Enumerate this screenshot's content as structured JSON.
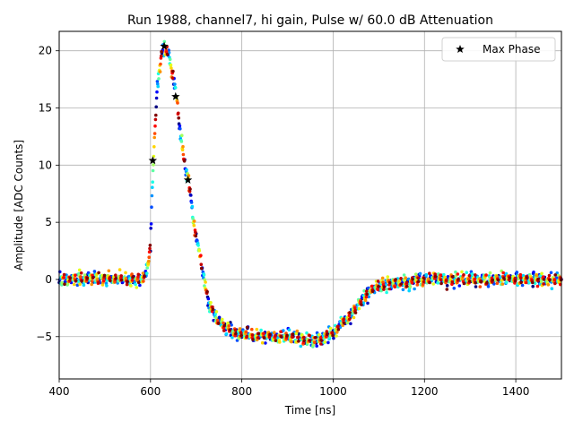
{
  "chart_data": {
    "type": "scatter",
    "title": "Run 1988, channel7, hi gain, Pulse w/ 60.0 dB Attenuation",
    "xlabel": "Time [ns]",
    "ylabel": "Amplitude [ADC Counts]",
    "xlim": [
      400,
      1500
    ],
    "ylim": [
      -8.7,
      21.7
    ],
    "xticks": [
      400,
      600,
      800,
      1000,
      1200,
      1400
    ],
    "yticks": [
      -5,
      0,
      5,
      10,
      15,
      20
    ],
    "grid": true,
    "legend": {
      "position": "top-right",
      "entries": [
        "Max Phase"
      ]
    },
    "pulse_shape": {
      "description_points_x": [
        400,
        580,
        590,
        600,
        606,
        615,
        625,
        630,
        640,
        650,
        657,
        665,
        675,
        683,
        695,
        710,
        730,
        760,
        800,
        850,
        900,
        950,
        975,
        1000,
        1030,
        1060,
        1080,
        1100,
        1150,
        1200,
        1300,
        1400,
        1500
      ],
      "description_points_y": [
        0,
        0,
        0.5,
        3,
        10.4,
        17,
        19.8,
        20.4,
        19.6,
        17.5,
        16,
        13,
        10,
        8.7,
        5,
        1.5,
        -2.5,
        -4.2,
        -4.8,
        -5,
        -5,
        -5.3,
        -5.2,
        -4.7,
        -3.5,
        -2,
        -1,
        -0.5,
        -0.3,
        0,
        0,
        0,
        0
      ]
    },
    "max_phase_points": [
      {
        "x": 605,
        "y": 10.4
      },
      {
        "x": 630,
        "y": 20.4
      },
      {
        "x": 655,
        "y": 16.0
      },
      {
        "x": 682,
        "y": 8.7
      }
    ],
    "colormap": "jet"
  }
}
